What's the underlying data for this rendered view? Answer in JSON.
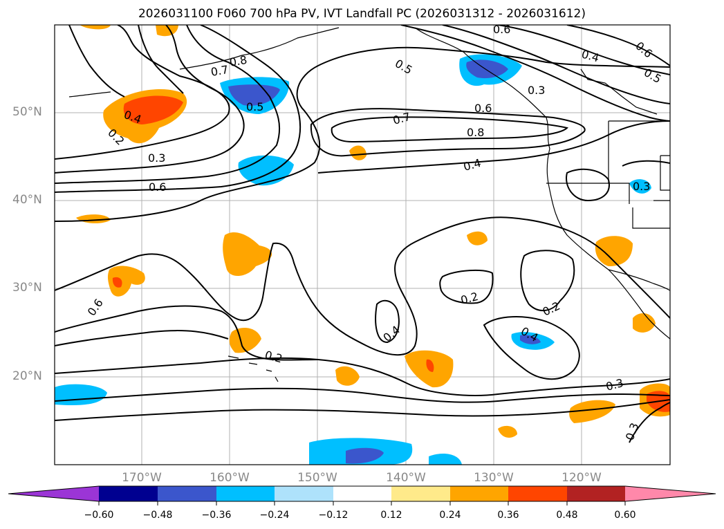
{
  "title": "2026031100 F060 700 hPa PV, IVT Landfall PC (2026031312 - 2026031612)",
  "axes": {
    "lon_labels": [
      "170°W",
      "160°W",
      "150°W",
      "140°W",
      "130°W",
      "120°W"
    ],
    "lat_labels": [
      "50°N",
      "40°N",
      "30°N",
      "20°N"
    ]
  },
  "colorbar": {
    "ticks": [
      "−0.60",
      "−0.48",
      "−0.36",
      "−0.24",
      "−0.12",
      "0.12",
      "0.24",
      "0.36",
      "0.48",
      "0.60"
    ],
    "colors": [
      "#9b35d6",
      "#000090",
      "#3b56cc",
      "#00bfff",
      "#aee2fb",
      "#ffffff",
      "#ffea8a",
      "#ffa500",
      "#ff4500",
      "#b22222",
      "#ff88aa"
    ]
  },
  "contour_labels": [
    {
      "text": "0.6",
      "name": "contour-label-0-6-top"
    },
    {
      "text": "0.4",
      "name": "contour-label-0-4-ne"
    },
    {
      "text": "0.6",
      "name": "contour-label-0-6-ne"
    },
    {
      "text": "0.5",
      "name": "contour-label-0-5-ne"
    },
    {
      "text": "0.8",
      "name": "contour-label-0-8-aleutian"
    },
    {
      "text": "0.7",
      "name": "contour-label-0-7-aleutian"
    },
    {
      "text": "0.5",
      "name": "contour-label-0-5-gulf"
    },
    {
      "text": "0.3",
      "name": "contour-label-0-3-bc"
    },
    {
      "text": "0.4",
      "name": "contour-label-0-4-west-a"
    },
    {
      "text": "0.2",
      "name": "contour-label-0-2-west"
    },
    {
      "text": "0.5",
      "name": "contour-label-0-5-west"
    },
    {
      "text": "0.6",
      "name": "contour-label-0-6-coast"
    },
    {
      "text": "0.7",
      "name": "contour-label-0-7-center"
    },
    {
      "text": "0.8",
      "name": "contour-label-0-8-center"
    },
    {
      "text": "0.3",
      "name": "contour-label-0-3-west"
    },
    {
      "text": "0.4",
      "name": "contour-label-0-4-center"
    },
    {
      "text": "0.6",
      "name": "contour-label-0-6-west"
    },
    {
      "text": "0.3",
      "name": "contour-label-0-3-idaho"
    },
    {
      "text": "0.6",
      "name": "contour-label-0-6-south"
    },
    {
      "text": "0.2",
      "name": "contour-label-0-2-mid"
    },
    {
      "text": "0.2",
      "name": "contour-label-0-2-east"
    },
    {
      "text": "0.4",
      "name": "contour-label-0-4-mid"
    },
    {
      "text": "0.4",
      "name": "contour-label-0-4-se"
    },
    {
      "text": "0.2",
      "name": "contour-label-0-2-hawaii"
    },
    {
      "text": "0.3",
      "name": "contour-label-0-3-south"
    },
    {
      "text": "0.3",
      "name": "contour-label-0-3-mexico"
    }
  ]
}
